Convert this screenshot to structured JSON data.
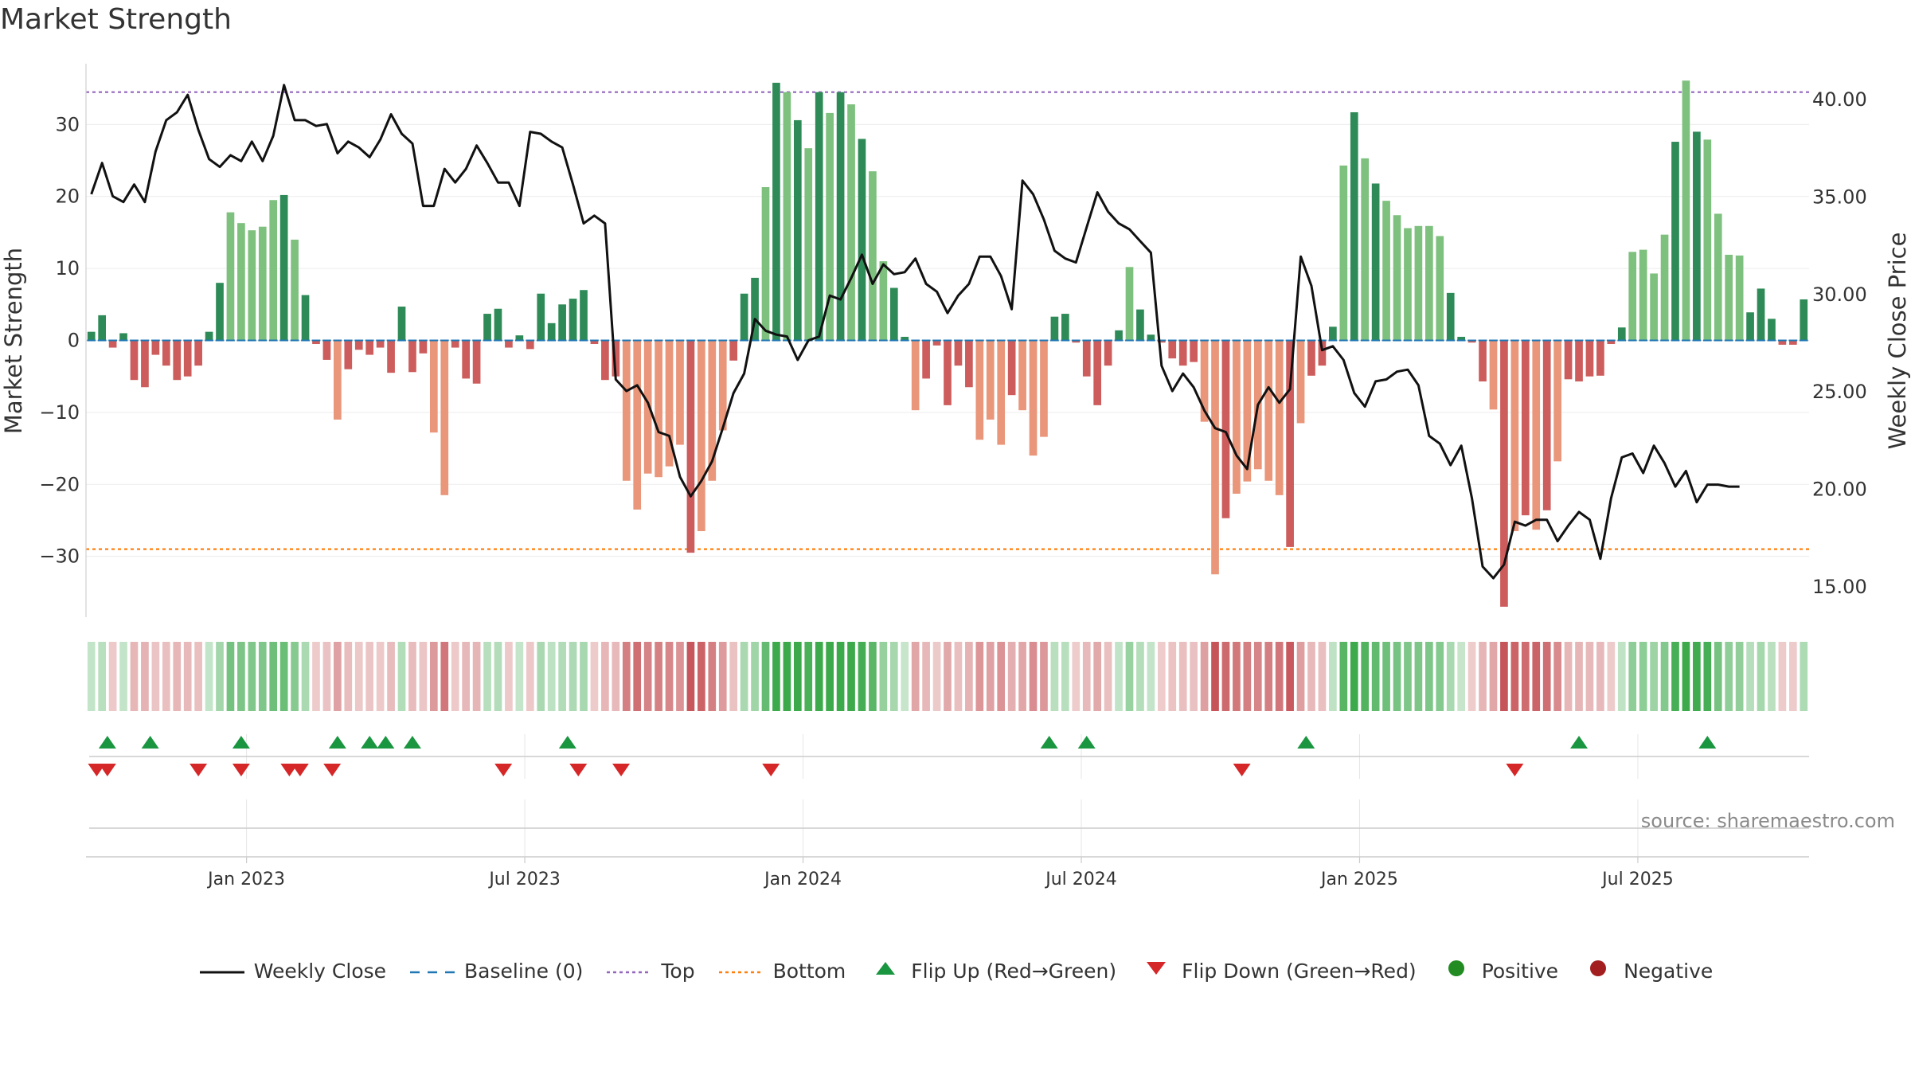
{
  "title": "Market Strength",
  "source": "source: sharemaestro.com",
  "colors": {
    "strong_green": "#2e8b57",
    "light_green": "#7ec07e",
    "strong_red": "#cd5c5c",
    "light_red": "#e9967a",
    "price_line": "#111111",
    "baseline": "#1f77b4",
    "top_line": "#9467bd",
    "bottom_line": "#ff7f0e",
    "flip_up": "#1a9641",
    "flip_down": "#d62728",
    "positive": "#228b22",
    "negative": "#a31f1f"
  },
  "chart_data": {
    "type": "bar",
    "title": "Market Strength",
    "ylabel_left": "Market Strength",
    "ylabel_right": "Weekly Close Price",
    "ylim_left": [
      -39,
      39
    ],
    "ylim_right": [
      13.2,
      42.0
    ],
    "yticks_left": [
      30,
      20,
      10,
      0,
      -10,
      -20,
      -30
    ],
    "yticks_left_labels": [
      "30",
      "20",
      "10",
      "0",
      "−10",
      "−20",
      "−30"
    ],
    "yticks_right": [
      40,
      35,
      30,
      25,
      20,
      15
    ],
    "yticks_right_labels": [
      "40.00",
      "35.00",
      "30.00",
      "25.00",
      "20.00",
      "15.00"
    ],
    "top_level": 34.5,
    "bottom_level": -29,
    "x_tick_labels": [
      "Jan 2023",
      "Jul 2023",
      "Jan 2024",
      "Jul 2024",
      "Jan 2025",
      "Jul 2025"
    ],
    "x_tick_weeks": [
      14.5,
      40.5,
      66.5,
      92.5,
      118.5,
      144.5
    ],
    "strength_values": [
      1.2,
      3.5,
      -1,
      1,
      -5.5,
      -6.5,
      -2,
      -3.5,
      -5.5,
      -5,
      -3.5,
      1.2,
      8,
      17.8,
      16.3,
      15.3,
      15.8,
      19.5,
      20.2,
      14,
      6.3,
      -0.5,
      -2.7,
      -11,
      -4,
      -1.3,
      -2,
      -1,
      -4.5,
      4.7,
      -4.4,
      -1.8,
      -12.8,
      -21.5,
      -1,
      -5.3,
      -6,
      3.7,
      4.4,
      -1,
      0.7,
      -1.2,
      6.5,
      2.4,
      5,
      5.8,
      7,
      -0.5,
      -5.5,
      -5,
      -19.5,
      -23.5,
      -18.5,
      -19,
      -17.5,
      -14.5,
      -29.5,
      -26.5,
      -19.5,
      -12.5,
      -2.8,
      6.5,
      8.7,
      21.3,
      35.8,
      34.5,
      30.6,
      26.7,
      34.5,
      31.6,
      34.5,
      32.8,
      28,
      23.5,
      11,
      7.3,
      0.5,
      -9.7,
      -5.3,
      -0.7,
      -9,
      -3.5,
      -6.5,
      -13.8,
      -11,
      -14.5,
      -7.6,
      -9.7,
      -16,
      -13.4,
      3.3,
      3.7,
      -0.3,
      -5,
      -9,
      -3.5,
      1.4,
      10.2,
      4.3,
      0.8,
      -0.3,
      -2.5,
      -3.5,
      -3,
      -11.3,
      -32.5,
      -24.7,
      -21.3,
      -19.6,
      -17.9,
      -19.5,
      -21.5,
      -28.7,
      -11.5,
      -4.9,
      -3.5,
      1.9,
      24.3,
      31.7,
      25.3,
      21.8,
      19.4,
      17.4,
      15.6,
      15.9,
      15.9,
      14.5,
      6.6,
      0.5,
      -0.3,
      -5.7,
      -9.6,
      -37,
      -26.5,
      -24.3,
      -26.3,
      -23.6,
      -16.8,
      -5.4,
      -5.7,
      -5,
      -4.9,
      -0.5,
      1.8,
      12.3,
      12.6,
      9.3,
      14.7,
      27.6,
      36.1,
      29,
      27.9,
      17.6,
      11.9,
      11.8,
      3.9,
      7.2,
      3,
      -0.6,
      -0.6,
      5.7
    ],
    "close_prices": [
      35.1,
      36.7,
      35,
      34.7,
      35.6,
      34.7,
      37.3,
      38.9,
      39.3,
      40.2,
      38.4,
      36.9,
      36.5,
      37.1,
      36.8,
      37.8,
      36.8,
      38.1,
      40.7,
      38.9,
      38.9,
      38.6,
      38.7,
      37.2,
      37.8,
      37.5,
      37,
      37.9,
      39.2,
      38.2,
      37.7,
      34.5,
      34.5,
      36.4,
      35.7,
      36.4,
      37.6,
      36.7,
      35.7,
      35.7,
      34.5,
      38.3,
      38.2,
      37.8,
      37.5,
      35.6,
      33.6,
      34,
      33.6,
      25.6,
      25,
      25.3,
      24.4,
      22.9,
      22.7,
      20.6,
      19.6,
      20.4,
      21.4,
      23.1,
      24.9,
      25.9,
      28.7,
      28.1,
      27.9,
      27.8,
      26.6,
      27.6,
      27.8,
      29.9,
      29.7,
      30.8,
      32,
      30.5,
      31.5,
      31,
      31.1,
      31.8,
      30.5,
      30.1,
      29,
      29.9,
      30.5,
      31.9,
      31.9,
      30.9,
      29.2,
      35.8,
      35.1,
      33.8,
      32.2,
      31.8,
      31.6,
      33.4,
      35.2,
      34.2,
      33.6,
      33.3,
      32.7,
      32.1,
      26.3,
      25,
      25.9,
      25.2,
      24,
      23.1,
      22.9,
      21.7,
      21,
      24.3,
      25.2,
      24.4,
      25.1,
      31.9,
      30.4,
      27.1,
      27.3,
      26.6,
      24.9,
      24.2,
      25.5,
      25.6,
      26,
      26.1,
      25.3,
      22.7,
      22.3,
      21.2,
      22.2,
      19.5,
      16,
      15.4,
      16.1,
      18.3,
      18.1,
      18.4,
      18.4,
      17.3,
      18.1,
      18.8,
      18.4,
      16.4,
      19.5,
      21.6,
      21.8,
      20.8,
      22.2,
      21.3,
      20.1,
      20.9,
      19.3,
      20.2,
      20.2,
      20.1,
      20.1
    ],
    "flip_up_weeks": [
      1.5,
      5.5,
      14,
      23,
      26,
      27.5,
      30,
      44.5,
      89.5,
      93,
      113.5,
      139,
      151
    ],
    "flip_down_weeks": [
      0.5,
      1.5,
      10,
      14,
      18.5,
      19.5,
      22.5,
      38.5,
      45.5,
      49.5,
      63.5,
      107.5,
      133
    ],
    "legend": [
      "Weekly Close",
      "Baseline (0)",
      "Top",
      "Bottom",
      "Flip Up (Red→Green)",
      "Flip Down (Green→Red)",
      "Positive",
      "Negative"
    ]
  }
}
